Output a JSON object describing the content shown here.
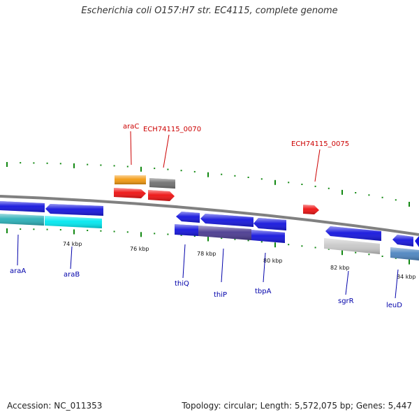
{
  "title": "Escherichia coli O157:H7 str. EC4115, complete genome",
  "accession": "Accession: NC_011353",
  "summary": "Topology: circular; Length: 5,572,075 bp; Genes: 5,447",
  "tick_labels": [
    "74 kbp",
    "76 kbp",
    "78 kbp",
    "80 kbp",
    "82 kbp",
    "84 kbp"
  ],
  "top_labels": [
    "araC",
    "ECH74115_0070",
    "ECH74115_0075"
  ],
  "bottom_labels": [
    "araA",
    "araB",
    "thiQ",
    "thiP",
    "tbpA",
    "sgrR",
    "leuD"
  ],
  "colors": {
    "backbone": "#808080",
    "tick": "#118811",
    "label_top": "#cc0000",
    "label_bottom": "#0000aa",
    "gene_blue": "#1515dd",
    "gene_cyan": "#00e8f0",
    "gene_cyan_dark": "#2ab0b8",
    "gene_red": "#ee1111",
    "gene_orange": "#f39a10",
    "gene_gray": "#707070",
    "gene_lightgray": "#c8c8c8",
    "gene_purple": "#4a3a90",
    "gene_steel": "#4d85c0"
  }
}
